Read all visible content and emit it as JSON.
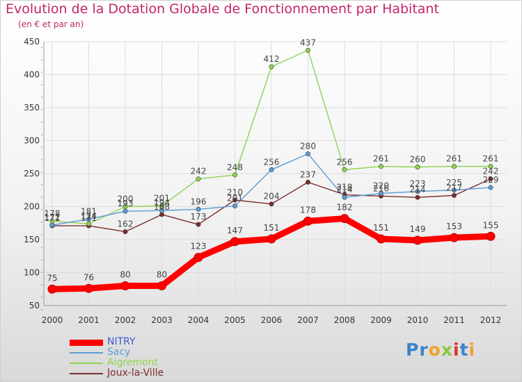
{
  "title": "Evolution de la Dotation Globale de Fonctionnement par Habitant",
  "subtitle": "(en € et par an)",
  "logo_letters": [
    "P",
    "r",
    "o",
    "x",
    "i",
    "t",
    "i"
  ],
  "logo_colors": [
    "#3a84c9",
    "#3a84c9",
    "#f0a22a",
    "#8cc63f",
    "#e0312f",
    "#3a84c9",
    "#f0a22a"
  ],
  "chart_data": {
    "type": "line",
    "title": "Evolution de la Dotation Globale de Fonctionnement par Habitant",
    "subtitle": "(en € et par an)",
    "xlabel": "",
    "ylabel": "",
    "x": [
      "2000",
      "2001",
      "2002",
      "2003",
      "2004",
      "2005",
      "2006",
      "2007",
      "2008",
      "2009",
      "2010",
      "2011",
      "2012"
    ],
    "ylim": [
      50,
      450
    ],
    "yticks": [
      "50",
      "100",
      "150",
      "200",
      "250",
      "300",
      "350",
      "400",
      "450"
    ],
    "grid": true,
    "legend_position": "bottom-left",
    "series": [
      {
        "name": "NITRY",
        "color": "#ff0000",
        "values": [
          75,
          76,
          80,
          80,
          123,
          147,
          151,
          178,
          182,
          151,
          149,
          153,
          155
        ],
        "labels": [
          "75",
          "76",
          "80",
          "80",
          "123",
          "147",
          "151",
          "178",
          "182",
          "151",
          "149",
          "153",
          "155"
        ]
      },
      {
        "name": "Sacy",
        "color": "#5b9bd5",
        "values": [
          172,
          181,
          193,
          194,
          196,
          201,
          256,
          280,
          214,
          220,
          223,
          225,
          229
        ],
        "labels": [
          "172",
          "181",
          "193",
          "194",
          "196",
          "201",
          "256",
          "280",
          "214",
          "220",
          "223",
          "225",
          "229"
        ]
      },
      {
        "name": "Aigremont",
        "color": "#8ed34e",
        "values": [
          178,
          174,
          200,
          201,
          242,
          248,
          412,
          437,
          256,
          261,
          260,
          261,
          261
        ],
        "labels": [
          "178",
          "174",
          "200",
          "201",
          "242",
          "248",
          "412",
          "437",
          "256",
          "261",
          "260",
          "261",
          "261"
        ]
      },
      {
        "name": "Joux-la-Ville",
        "color": "#7a2d2d",
        "values": [
          171,
          171,
          162,
          188,
          173,
          210,
          204,
          237,
          218,
          216,
          214,
          217,
          242
        ],
        "labels": [
          "171",
          "171",
          "162",
          "188",
          "173",
          "210",
          "204",
          "237",
          "218",
          "216",
          "214",
          "217",
          "242"
        ]
      }
    ]
  }
}
